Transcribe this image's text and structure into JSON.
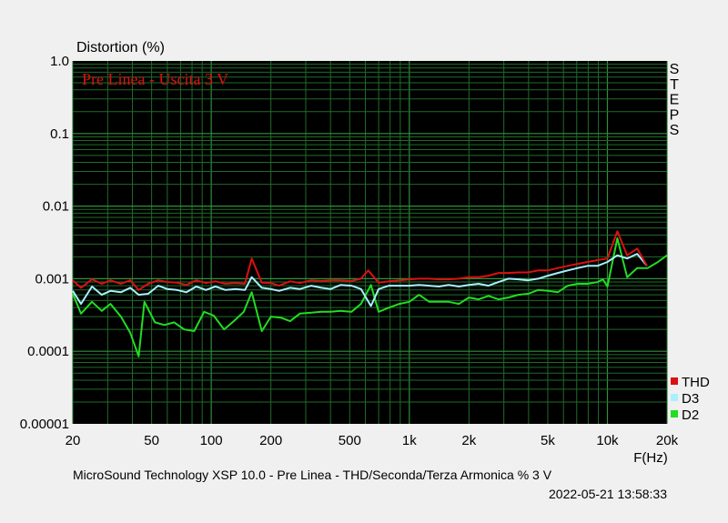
{
  "chart_data": {
    "type": "line",
    "title": "Distortion (%)",
    "annotation": "Pre Linea - Uscita 3 V",
    "side_label": [
      "S",
      "T",
      "E",
      "P",
      "S"
    ],
    "xlabel": "F(Hz)",
    "footer": "MicroSound Technology XSP 10.0 - Pre Linea - THD/Seconda/Terza Armonica % 3 V",
    "timestamp": "2022-05-21 13:58:33",
    "x_scale": "log",
    "y_scale": "log",
    "xlim": [
      20,
      20000
    ],
    "ylim": [
      1e-05,
      1
    ],
    "x_ticks": [
      {
        "v": 20,
        "label": "20"
      },
      {
        "v": 50,
        "label": "50"
      },
      {
        "v": 100,
        "label": "100"
      },
      {
        "v": 200,
        "label": "200"
      },
      {
        "v": 500,
        "label": "500"
      },
      {
        "v": 1000,
        "label": "1k"
      },
      {
        "v": 2000,
        "label": "2k"
      },
      {
        "v": 5000,
        "label": "5k"
      },
      {
        "v": 10000,
        "label": "10k"
      },
      {
        "v": 20000,
        "label": "20k"
      }
    ],
    "y_ticks": [
      {
        "v": 1,
        "label": "1.0"
      },
      {
        "v": 0.1,
        "label": "0.1"
      },
      {
        "v": 0.01,
        "label": "0.01"
      },
      {
        "v": 0.001,
        "label": "0.001"
      },
      {
        "v": 0.0001,
        "label": "0.0001"
      },
      {
        "v": 1e-05,
        "label": "0.00001"
      }
    ],
    "grid": true,
    "legend_position": "bottom-right",
    "colors": {
      "background": "#000000",
      "grid": "#1f6b2a",
      "grid_major": "#2f8f3a",
      "annotation": "#dd1111"
    },
    "series": [
      {
        "name": "THD",
        "color": "#dd1010",
        "points": [
          [
            20,
            0.00095
          ],
          [
            22,
            0.00075
          ],
          [
            25,
            0.00098
          ],
          [
            28,
            0.00085
          ],
          [
            31,
            0.00095
          ],
          [
            35,
            0.00085
          ],
          [
            39,
            0.00095
          ],
          [
            43,
            0.0007
          ],
          [
            48,
            0.00085
          ],
          [
            54,
            0.00095
          ],
          [
            60,
            0.0009
          ],
          [
            67,
            0.00088
          ],
          [
            75,
            0.00082
          ],
          [
            84,
            0.00095
          ],
          [
            94,
            0.00087
          ],
          [
            105,
            0.00092
          ],
          [
            118,
            0.00085
          ],
          [
            132,
            0.00087
          ],
          [
            148,
            0.00085
          ],
          [
            160,
            0.0019
          ],
          [
            180,
            0.00088
          ],
          [
            200,
            0.00087
          ],
          [
            220,
            0.0008
          ],
          [
            250,
            0.00092
          ],
          [
            280,
            0.00087
          ],
          [
            320,
            0.00095
          ],
          [
            360,
            0.00093
          ],
          [
            400,
            0.00095
          ],
          [
            450,
            0.00095
          ],
          [
            510,
            0.00093
          ],
          [
            570,
            0.001
          ],
          [
            620,
            0.0013
          ],
          [
            700,
            0.00088
          ],
          [
            790,
            0.00092
          ],
          [
            890,
            0.00095
          ],
          [
            1000,
            0.00098
          ],
          [
            1120,
            0.001
          ],
          [
            1260,
            0.001
          ],
          [
            1410,
            0.00098
          ],
          [
            1580,
            0.00098
          ],
          [
            1780,
            0.001
          ],
          [
            2000,
            0.00105
          ],
          [
            2240,
            0.00105
          ],
          [
            2510,
            0.0011
          ],
          [
            2820,
            0.0012
          ],
          [
            3160,
            0.0012
          ],
          [
            3550,
            0.00122
          ],
          [
            3980,
            0.00122
          ],
          [
            4470,
            0.0013
          ],
          [
            5010,
            0.0013
          ],
          [
            5620,
            0.0014
          ],
          [
            6310,
            0.0015
          ],
          [
            7080,
            0.0016
          ],
          [
            7940,
            0.0017
          ],
          [
            8910,
            0.0018
          ],
          [
            10000,
            0.0019
          ],
          [
            11220,
            0.0045
          ],
          [
            12590,
            0.0021
          ],
          [
            14130,
            0.0026
          ],
          [
            15850,
            0.0015
          ]
        ]
      },
      {
        "name": "D3",
        "color": "#a8f0ff",
        "points": [
          [
            20,
            0.00068
          ],
          [
            22,
            0.00045
          ],
          [
            25,
            0.00078
          ],
          [
            28,
            0.0006
          ],
          [
            31,
            0.00068
          ],
          [
            35,
            0.00065
          ],
          [
            39,
            0.00075
          ],
          [
            43,
            0.0006
          ],
          [
            48,
            0.00062
          ],
          [
            54,
            0.0008
          ],
          [
            60,
            0.00072
          ],
          [
            67,
            0.0007
          ],
          [
            75,
            0.00065
          ],
          [
            84,
            0.00078
          ],
          [
            94,
            0.0007
          ],
          [
            105,
            0.00078
          ],
          [
            118,
            0.0007
          ],
          [
            132,
            0.00072
          ],
          [
            148,
            0.0007
          ],
          [
            160,
            0.00105
          ],
          [
            180,
            0.00075
          ],
          [
            200,
            0.00072
          ],
          [
            220,
            0.00068
          ],
          [
            250,
            0.00075
          ],
          [
            280,
            0.00072
          ],
          [
            320,
            0.0008
          ],
          [
            360,
            0.00075
          ],
          [
            400,
            0.00072
          ],
          [
            450,
            0.00082
          ],
          [
            510,
            0.0008
          ],
          [
            570,
            0.00072
          ],
          [
            640,
            0.00042
          ],
          [
            700,
            0.00072
          ],
          [
            790,
            0.0008
          ],
          [
            890,
            0.0008
          ],
          [
            1000,
            0.0008
          ],
          [
            1120,
            0.00082
          ],
          [
            1260,
            0.0008
          ],
          [
            1410,
            0.00078
          ],
          [
            1580,
            0.00082
          ],
          [
            1780,
            0.00078
          ],
          [
            2000,
            0.00082
          ],
          [
            2240,
            0.00085
          ],
          [
            2510,
            0.0008
          ],
          [
            2820,
            0.0009
          ],
          [
            3160,
            0.001
          ],
          [
            3550,
            0.00098
          ],
          [
            3980,
            0.00095
          ],
          [
            4470,
            0.001
          ],
          [
            5010,
            0.0011
          ],
          [
            5620,
            0.0012
          ],
          [
            6310,
            0.0013
          ],
          [
            7080,
            0.0014
          ],
          [
            7940,
            0.0015
          ],
          [
            8910,
            0.0015
          ],
          [
            10000,
            0.0017
          ],
          [
            11220,
            0.0021
          ],
          [
            12590,
            0.0019
          ],
          [
            14130,
            0.0022
          ],
          [
            15850,
            0.0015
          ]
        ]
      },
      {
        "name": "D2",
        "color": "#22dd22",
        "points": [
          [
            20,
            0.00062
          ],
          [
            22,
            0.00033
          ],
          [
            25,
            0.00048
          ],
          [
            28,
            0.00036
          ],
          [
            31,
            0.00045
          ],
          [
            35,
            0.0003
          ],
          [
            39,
            0.00018
          ],
          [
            43,
            8.5e-05
          ],
          [
            46,
            0.00048
          ],
          [
            52,
            0.00025
          ],
          [
            58,
            0.00023
          ],
          [
            65,
            0.00025
          ],
          [
            73,
            0.0002
          ],
          [
            82,
            0.00019
          ],
          [
            92,
            0.00035
          ],
          [
            103,
            0.00031
          ],
          [
            116,
            0.0002
          ],
          [
            130,
            0.00026
          ],
          [
            146,
            0.00035
          ],
          [
            160,
            0.00065
          ],
          [
            180,
            0.00019
          ],
          [
            200,
            0.0003
          ],
          [
            225,
            0.00029
          ],
          [
            250,
            0.00026
          ],
          [
            280,
            0.00033
          ],
          [
            320,
            0.00034
          ],
          [
            360,
            0.00035
          ],
          [
            400,
            0.00035
          ],
          [
            450,
            0.00036
          ],
          [
            510,
            0.00035
          ],
          [
            570,
            0.00045
          ],
          [
            640,
            0.00082
          ],
          [
            700,
            0.00035
          ],
          [
            790,
            0.0004
          ],
          [
            890,
            0.00045
          ],
          [
            1000,
            0.00048
          ],
          [
            1120,
            0.0006
          ],
          [
            1260,
            0.00048
          ],
          [
            1410,
            0.00048
          ],
          [
            1580,
            0.00048
          ],
          [
            1780,
            0.00045
          ],
          [
            2000,
            0.00055
          ],
          [
            2240,
            0.00052
          ],
          [
            2510,
            0.00058
          ],
          [
            2820,
            0.00052
          ],
          [
            3160,
            0.00055
          ],
          [
            3550,
            0.0006
          ],
          [
            3980,
            0.00062
          ],
          [
            4470,
            0.0007
          ],
          [
            5010,
            0.00068
          ],
          [
            5620,
            0.00065
          ],
          [
            6310,
            0.0008
          ],
          [
            7080,
            0.00085
          ],
          [
            7940,
            0.00085
          ],
          [
            8910,
            0.0009
          ],
          [
            9500,
            0.00098
          ],
          [
            10000,
            0.00078
          ],
          [
            11220,
            0.0036
          ],
          [
            12590,
            0.00105
          ],
          [
            14130,
            0.0014
          ],
          [
            16000,
            0.0014
          ],
          [
            18000,
            0.0017
          ],
          [
            20000,
            0.0021
          ]
        ]
      }
    ]
  }
}
